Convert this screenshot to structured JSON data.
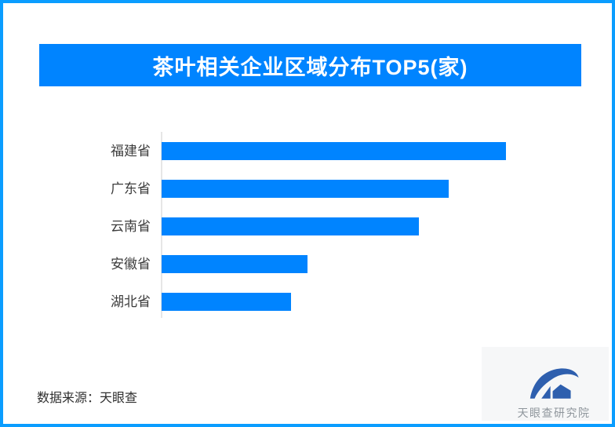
{
  "header": {
    "title": "茶叶相关企业区域分布TOP5(家)"
  },
  "chart_data": {
    "type": "bar",
    "orientation": "horizontal",
    "title": "茶叶相关企业区域分布TOP5(家)",
    "categories": [
      "福建省",
      "广东省",
      "云南省",
      "安徽省",
      "湖北省"
    ],
    "values": [
      100,
      83.4,
      74.7,
      42.4,
      37.6
    ],
    "units": "relative % of longest bar (no numeric value labels or axis scale shown in image)",
    "xlabel": "",
    "ylabel": "",
    "grid": false,
    "value_labels_shown": false,
    "legend": false,
    "bar_color": "#0084FF",
    "axis_line_color": "#E6E6E6"
  },
  "footer": {
    "source": "数据来源：天眼查",
    "brand": "天眼查研究院"
  },
  "colors": {
    "page_border": "#0A9DFF",
    "banner": "#0084FF",
    "background": "#FFFFFF",
    "category_label_text": "#3C3C3C",
    "source_text": "#2F2F2F",
    "brand_text": "#8F969C",
    "logo_blue": "#2E5FAE"
  },
  "icons": {
    "brand_logo": "tianyancha-eye-logo"
  }
}
